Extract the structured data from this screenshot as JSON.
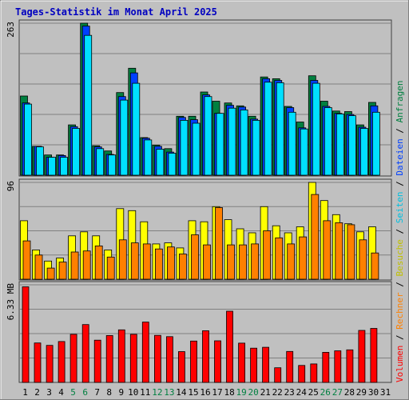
{
  "title": "Tages-Statistik im Monat April 2025",
  "colors": {
    "background": "#c0c0c0",
    "title": "#0000c0",
    "anfragen": "#008040",
    "dateien": "#0040ff",
    "seiten": "#00e0ff",
    "besuche": "#ffff00",
    "rechner": "#ff8000",
    "volumen": "#ff0000",
    "weekend": "#008040",
    "grid": "#808080"
  },
  "right_legend": [
    {
      "text": "Volumen",
      "color": "#ff0000"
    },
    {
      "text": " / ",
      "color": "#000000"
    },
    {
      "text": "Rechner",
      "color": "#ff8000"
    },
    {
      "text": " / ",
      "color": "#000000"
    },
    {
      "text": "Besuche",
      "color": "#c0c000"
    },
    {
      "text": " / ",
      "color": "#000000"
    },
    {
      "text": "Seiten",
      "color": "#00c0e0"
    },
    {
      "text": " / ",
      "color": "#000000"
    },
    {
      "text": "Dateien",
      "color": "#0040ff"
    },
    {
      "text": " / ",
      "color": "#000000"
    },
    {
      "text": "Anfragen",
      "color": "#008040"
    }
  ],
  "chart_data": [
    {
      "type": "bar",
      "max_label": "263",
      "ylim": [
        0,
        263
      ],
      "categories": [
        "1",
        "2",
        "3",
        "4",
        "5",
        "6",
        "7",
        "8",
        "9",
        "10",
        "11",
        "12",
        "13",
        "14",
        "15",
        "16",
        "17",
        "18",
        "19",
        "20",
        "21",
        "22",
        "23",
        "24",
        "25",
        "26",
        "27",
        "28",
        "29",
        "30",
        "31"
      ],
      "weekend_days": [
        "5",
        "6",
        "12",
        "13",
        "19",
        "20",
        "26",
        "27"
      ],
      "series": [
        {
          "name": "Anfragen",
          "values": [
            137,
            50,
            35,
            35,
            87,
            263,
            51,
            42,
            143,
            185,
            65,
            52,
            46,
            102,
            102,
            144,
            128,
            125,
            120,
            102,
            170,
            167,
            119,
            92,
            172,
            128,
            111,
            110,
            87,
            126,
            0
          ]
        },
        {
          "name": "Dateien",
          "values": [
            125,
            50,
            31,
            34,
            84,
            258,
            49,
            36,
            136,
            177,
            64,
            50,
            40,
            100,
            96,
            139,
            107,
            121,
            118,
            97,
            167,
            164,
            117,
            82,
            164,
            119,
            107,
            105,
            83,
            120,
            0
          ]
        },
        {
          "name": "Seiten",
          "values": [
            123,
            49,
            31,
            31,
            81,
            242,
            46,
            35,
            130,
            159,
            61,
            45,
            38,
            95,
            90,
            136,
            107,
            116,
            113,
            95,
            161,
            160,
            109,
            80,
            159,
            117,
            106,
            103,
            81,
            109,
            0
          ]
        }
      ]
    },
    {
      "type": "bar",
      "max_label": "96",
      "ylim": [
        0,
        96
      ],
      "categories": [
        "1",
        "2",
        "3",
        "4",
        "5",
        "6",
        "7",
        "8",
        "9",
        "10",
        "11",
        "12",
        "13",
        "14",
        "15",
        "16",
        "17",
        "18",
        "19",
        "20",
        "21",
        "22",
        "23",
        "24",
        "25",
        "26",
        "27",
        "28",
        "29",
        "30",
        "31"
      ],
      "series": [
        {
          "name": "Besuche",
          "values": [
            58,
            29,
            18,
            21,
            43,
            47,
            43,
            29,
            70,
            68,
            57,
            35,
            36,
            31,
            58,
            57,
            72,
            59,
            50,
            46,
            72,
            53,
            46,
            52,
            96,
            78,
            64,
            55,
            47,
            52,
            0
          ]
        },
        {
          "name": "Rechner",
          "values": [
            38,
            24,
            11,
            17,
            27,
            28,
            33,
            22,
            39,
            36,
            35,
            30,
            32,
            25,
            44,
            34,
            71,
            34,
            34,
            35,
            48,
            41,
            35,
            42,
            84,
            58,
            56,
            54,
            39,
            26,
            0
          ]
        }
      ]
    },
    {
      "type": "bar",
      "max_label": "6.33 MB",
      "ylim": [
        0,
        6.33
      ],
      "categories": [
        "1",
        "2",
        "3",
        "4",
        "5",
        "6",
        "7",
        "8",
        "9",
        "10",
        "11",
        "12",
        "13",
        "14",
        "15",
        "16",
        "17",
        "18",
        "19",
        "20",
        "21",
        "22",
        "23",
        "24",
        "25",
        "26",
        "27",
        "28",
        "29",
        "30",
        "31"
      ],
      "series": [
        {
          "name": "Volumen",
          "values": [
            6.2,
            2.56,
            2.4,
            2.65,
            3.12,
            3.75,
            2.74,
            3.04,
            3.41,
            3.12,
            3.91,
            3.05,
            2.97,
            2.0,
            2.68,
            3.35,
            2.7,
            4.62,
            2.55,
            2.22,
            2.28,
            0.95,
            2.01,
            1.1,
            1.2,
            1.95,
            2.05,
            2.11,
            3.37,
            3.5,
            0
          ]
        }
      ]
    }
  ]
}
